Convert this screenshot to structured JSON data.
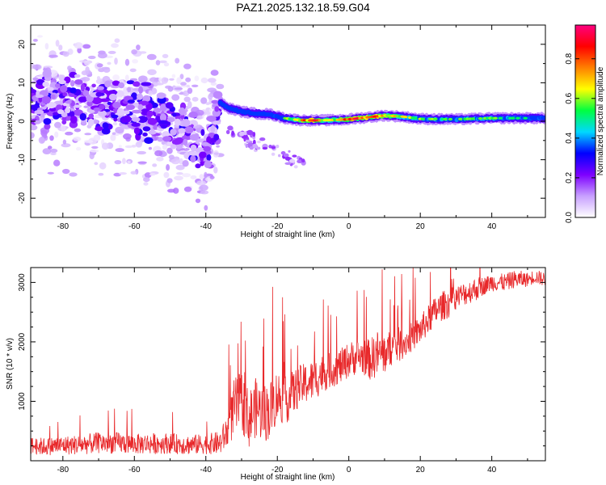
{
  "title": "PAZ1.2025.132.18.59.G04",
  "chart_data": [
    {
      "type": "heatmap",
      "xlabel": "Height of straight line (km)",
      "ylabel": "Frequency (Hz)",
      "colorbar_label": "Normalized spectral amplitude",
      "xlim": [
        -89,
        55
      ],
      "ylim": [
        -25,
        25
      ],
      "clim": [
        0,
        0.97
      ],
      "xticks": [
        -80,
        -60,
        -40,
        -20,
        0,
        20,
        40
      ],
      "xtick_labels": [
        "-80",
        "-60",
        "-40",
        "-20",
        "0",
        "20",
        "40"
      ],
      "yticks": [
        20,
        10,
        0,
        -10,
        -20
      ],
      "ytick_labels": [
        "20",
        "10",
        "0",
        "-10",
        "-20"
      ],
      "cticks": [
        0.0,
        0.2,
        0.4,
        0.6,
        0.8
      ],
      "ctick_labels": [
        "0.0",
        "0.2",
        "0.4",
        "0.6",
        "0.8"
      ],
      "colormap": [
        "#ffffff",
        "#c8a0ff",
        "#7d00ff",
        "#0000ff",
        "#00d8ff",
        "#00ff40",
        "#ffff00",
        "#ff8000",
        "#ff0000",
        "#ff0080"
      ],
      "ridge": {
        "x": [
          -36,
          -34,
          -30,
          -26,
          -22,
          -18,
          -14,
          -10,
          -5,
          0,
          5,
          10,
          15,
          20,
          30,
          40,
          50,
          55
        ],
        "freq": [
          5,
          3.5,
          2.5,
          2,
          1.8,
          0.8,
          0.3,
          0.2,
          0.3,
          0.5,
          1.0,
          1.5,
          1.2,
          0.6,
          0.5,
          0.8,
          0.8,
          0.8
        ],
        "amplitude": [
          0.25,
          0.3,
          0.35,
          0.35,
          0.4,
          0.5,
          0.7,
          0.85,
          0.6,
          0.85,
          0.8,
          0.75,
          0.6,
          0.55,
          0.5,
          0.55,
          0.45,
          0.45
        ]
      },
      "scatter_region": {
        "x_range": [
          -89,
          -36
        ],
        "center_freq": [
          [
            -89,
            6
          ],
          [
            -70,
            4
          ],
          [
            -55,
            2
          ],
          [
            -45,
            -2
          ],
          [
            -40,
            -8
          ],
          [
            -36,
            3
          ]
        ],
        "amplitude_range": [
          0.05,
          0.3
        ]
      }
    },
    {
      "type": "line",
      "xlabel": "Height of straight line (km)",
      "ylabel": "SNR (10 * v/v)",
      "xlim": [
        -89,
        55
      ],
      "ylim": [
        0,
        3250
      ],
      "xticks": [
        -80,
        -60,
        -40,
        -20,
        0,
        20,
        40
      ],
      "xtick_labels": [
        "-80",
        "-60",
        "-40",
        "-20",
        "0",
        "20",
        "40"
      ],
      "yticks": [
        1000,
        2000,
        3000
      ],
      "ytick_labels": [
        "1000",
        "2000",
        "3000"
      ],
      "series": [
        {
          "color": "#e8282a",
          "x": [
            -89,
            -85,
            -80,
            -75,
            -70,
            -65,
            -60,
            -55,
            -50,
            -45,
            -40,
            -36,
            -34,
            -32,
            -30,
            -28,
            -26,
            -24,
            -22,
            -20,
            -18,
            -16,
            -14,
            -12,
            -10,
            -8,
            -6,
            -4,
            -2,
            0,
            2,
            4,
            6,
            8,
            10,
            12,
            14,
            16,
            18,
            20,
            22,
            24,
            26,
            28,
            30,
            32,
            34,
            36,
            38,
            40,
            42,
            44,
            46,
            48,
            50,
            52,
            55
          ],
          "y": [
            250,
            240,
            260,
            270,
            300,
            300,
            280,
            290,
            290,
            270,
            280,
            300,
            500,
            900,
            1000,
            700,
            900,
            800,
            850,
            1100,
            1000,
            1100,
            1250,
            1300,
            1350,
            1450,
            1500,
            1550,
            1600,
            1700,
            1750,
            1750,
            1700,
            1800,
            1800,
            1900,
            1950,
            2000,
            2100,
            2200,
            2350,
            2500,
            2600,
            2650,
            2750,
            2800,
            2850,
            2900,
            2950,
            3000,
            3000,
            3000,
            3050,
            3050,
            3050,
            3100,
            3050
          ],
          "spread": [
            150,
            150,
            160,
            170,
            180,
            180,
            170,
            180,
            170,
            170,
            170,
            200,
            300,
            500,
            500,
            500,
            500,
            500,
            500,
            450,
            400,
            400,
            350,
            350,
            350,
            350,
            300,
            300,
            300,
            300,
            300,
            300,
            350,
            400,
            350,
            300,
            300,
            250,
            250,
            250,
            250,
            250,
            250,
            250,
            200,
            200,
            200,
            200,
            150,
            150,
            150,
            150,
            150,
            150,
            120,
            120,
            120
          ]
        }
      ]
    }
  ]
}
